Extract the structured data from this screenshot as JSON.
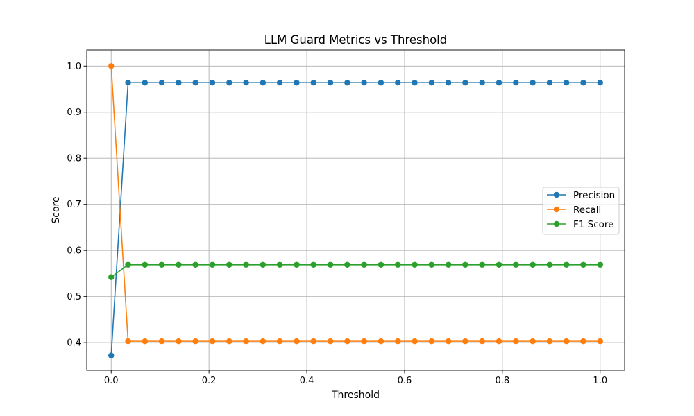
{
  "chart_data": {
    "type": "line",
    "title": "LLM Guard Metrics vs Threshold",
    "xlabel": "Threshold",
    "ylabel": "Score",
    "xlim": [
      -0.05,
      1.05
    ],
    "ylim": [
      0.34,
      1.035
    ],
    "xticks": [
      0.0,
      0.2,
      0.4,
      0.6,
      0.8,
      1.0
    ],
    "xtick_labels": [
      "0.0",
      "0.2",
      "0.4",
      "0.6",
      "0.8",
      "1.0"
    ],
    "yticks": [
      0.4,
      0.5,
      0.6,
      0.7,
      0.8,
      0.9,
      1.0
    ],
    "ytick_labels": [
      "0.4",
      "0.5",
      "0.6",
      "0.7",
      "0.8",
      "0.9",
      "1.0"
    ],
    "grid": true,
    "legend_position": "center-right",
    "x": [
      0.0,
      0.0345,
      0.069,
      0.1034,
      0.1379,
      0.1724,
      0.2069,
      0.2414,
      0.2759,
      0.3103,
      0.3448,
      0.3793,
      0.4138,
      0.4483,
      0.4828,
      0.5172,
      0.5517,
      0.5862,
      0.6207,
      0.6552,
      0.6897,
      0.7241,
      0.7586,
      0.7931,
      0.8276,
      0.8621,
      0.8966,
      0.931,
      0.9655,
      1.0
    ],
    "series": [
      {
        "name": "Precision",
        "color": "#1f77b4",
        "values": [
          0.372,
          0.964,
          0.964,
          0.964,
          0.964,
          0.964,
          0.964,
          0.964,
          0.964,
          0.964,
          0.964,
          0.964,
          0.964,
          0.964,
          0.964,
          0.964,
          0.964,
          0.964,
          0.964,
          0.964,
          0.964,
          0.964,
          0.964,
          0.964,
          0.964,
          0.964,
          0.964,
          0.964,
          0.964,
          0.964
        ]
      },
      {
        "name": "Recall",
        "color": "#ff7f0e",
        "values": [
          1.0,
          0.403,
          0.403,
          0.403,
          0.403,
          0.403,
          0.403,
          0.403,
          0.403,
          0.403,
          0.403,
          0.403,
          0.403,
          0.403,
          0.403,
          0.403,
          0.403,
          0.403,
          0.403,
          0.403,
          0.403,
          0.403,
          0.403,
          0.403,
          0.403,
          0.403,
          0.403,
          0.403,
          0.403,
          0.403
        ]
      },
      {
        "name": "F1 Score",
        "color": "#2ca02c",
        "values": [
          0.542,
          0.569,
          0.569,
          0.569,
          0.569,
          0.569,
          0.569,
          0.569,
          0.569,
          0.569,
          0.569,
          0.569,
          0.569,
          0.569,
          0.569,
          0.569,
          0.569,
          0.569,
          0.569,
          0.569,
          0.569,
          0.569,
          0.569,
          0.569,
          0.569,
          0.569,
          0.569,
          0.569,
          0.569,
          0.569
        ]
      }
    ]
  }
}
